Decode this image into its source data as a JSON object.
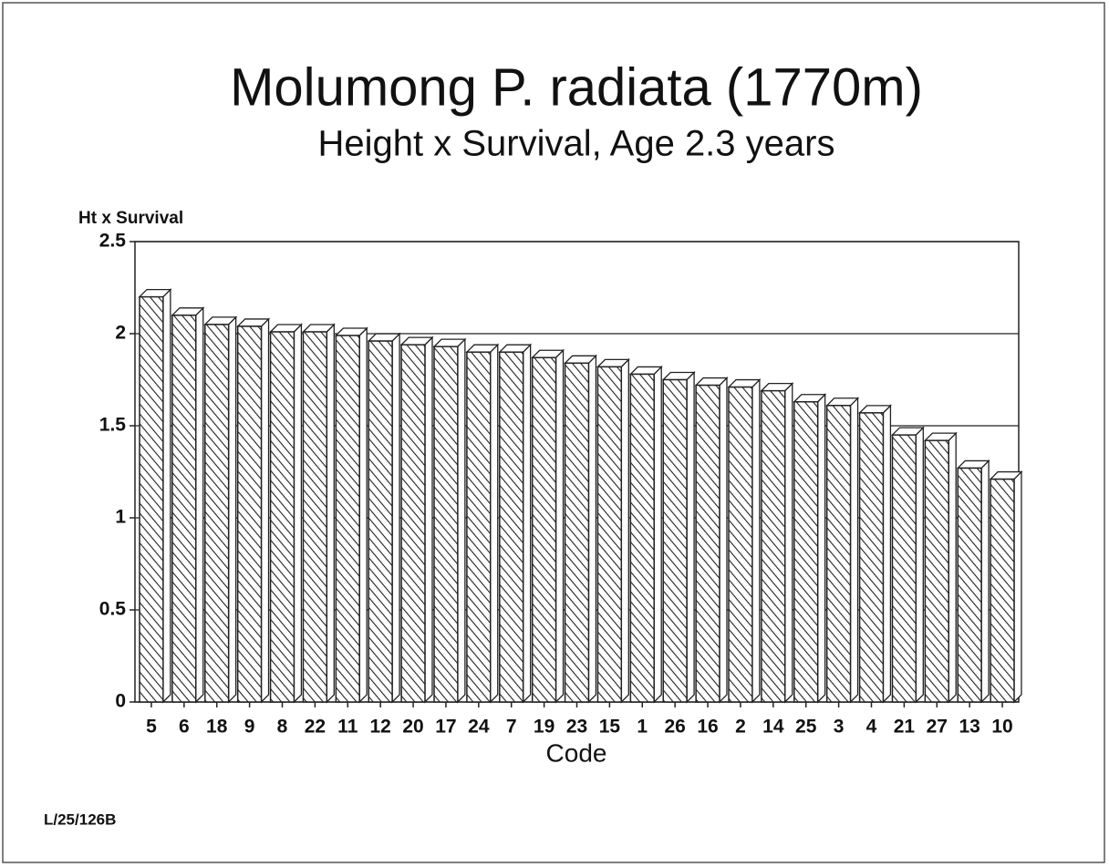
{
  "chart_data": {
    "type": "bar",
    "title": "Molumong P. radiata (1770m)",
    "subtitle": "Height x Survival, Age 2.3 years",
    "y_label": "Ht x Survival",
    "x_label": "Code",
    "footnote": "L/25/126B",
    "categories": [
      "5",
      "6",
      "18",
      "9",
      "8",
      "22",
      "11",
      "12",
      "20",
      "17",
      "24",
      "7",
      "19",
      "23",
      "15",
      "1",
      "26",
      "16",
      "2",
      "14",
      "25",
      "3",
      "4",
      "21",
      "27",
      "13",
      "10"
    ],
    "values": [
      2.2,
      2.1,
      2.05,
      2.04,
      2.01,
      2.01,
      1.99,
      1.96,
      1.94,
      1.93,
      1.9,
      1.9,
      1.87,
      1.84,
      1.82,
      1.78,
      1.75,
      1.72,
      1.71,
      1.69,
      1.63,
      1.61,
      1.57,
      1.45,
      1.42,
      1.27,
      1.21
    ],
    "color": "#ffffff",
    "ylim": [
      0,
      2.5
    ],
    "yticks": [
      0,
      0.5,
      1,
      1.5,
      2,
      2.5
    ],
    "grid": true
  }
}
